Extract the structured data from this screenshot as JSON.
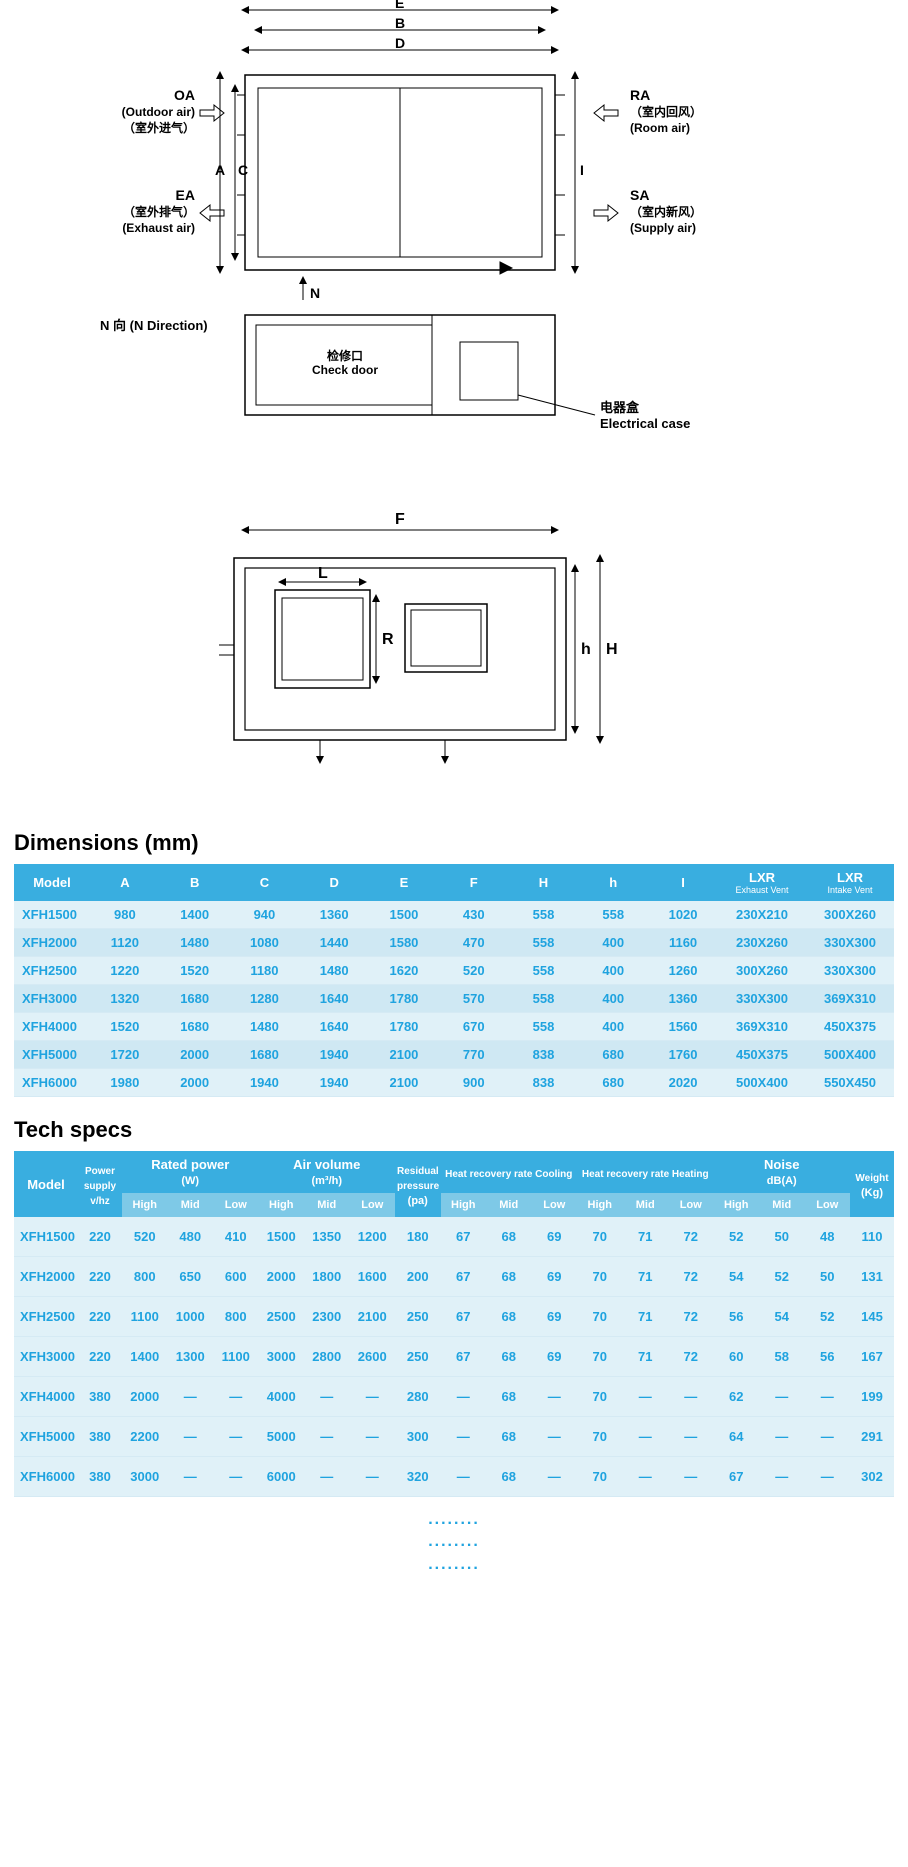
{
  "dark": "#000000",
  "white": "#ffffff",
  "blue": "#1fa3df",
  "header_bg": "#39aee0",
  "sub_bg": "#7ec9e7",
  "diag": {
    "topE": "E",
    "topB": "B",
    "topD": "D",
    "leftA": "A",
    "leftC": "C",
    "rightI": "I",
    "N": "N",
    "NDir": "N 向 (N Direction)",
    "OA_en": "OA",
    "OA_sub1": "(Outdoor air)",
    "OA_sub2": "（室外进气）",
    "EA_en": "EA",
    "EA_sub1": "（室外排气）",
    "EA_sub2": "(Exhaust air)",
    "RA_en": "RA",
    "RA_sub1": "（室内回风）",
    "RA_sub2": "(Room air)",
    "SA_en": "SA",
    "SA_sub1": "（室内新风）",
    "SA_sub2": "(Supply air)",
    "check_cn": "检修口",
    "check_en": "Check door",
    "elec_cn": "电器盒",
    "elec_en": "Electrical case",
    "F": "F",
    "L": "L",
    "R": "R",
    "h": "h",
    "H": "H"
  },
  "dims_title": "Dimensions (mm)",
  "dims_header": [
    "Model",
    "A",
    "B",
    "C",
    "D",
    "E",
    "F",
    "H",
    "h",
    "I",
    "LXR",
    "LXR"
  ],
  "dims_sub": [
    "",
    "",
    "",
    "",
    "",
    "",
    "",
    "",
    "",
    "",
    "Exhaust Vent",
    "Intake Vent"
  ],
  "dims_rows": [
    [
      "XFH1500",
      "980",
      "1400",
      "940",
      "1360",
      "1500",
      "430",
      "558",
      "558",
      "1020",
      "230X210",
      "300X260"
    ],
    [
      "XFH2000",
      "1120",
      "1480",
      "1080",
      "1440",
      "1580",
      "470",
      "558",
      "400",
      "1160",
      "230X260",
      "330X300"
    ],
    [
      "XFH2500",
      "1220",
      "1520",
      "1180",
      "1480",
      "1620",
      "520",
      "558",
      "400",
      "1260",
      "300X260",
      "330X300"
    ],
    [
      "XFH3000",
      "1320",
      "1680",
      "1280",
      "1640",
      "1780",
      "570",
      "558",
      "400",
      "1360",
      "330X300",
      "369X310"
    ],
    [
      "XFH4000",
      "1520",
      "1680",
      "1480",
      "1640",
      "1780",
      "670",
      "558",
      "400",
      "1560",
      "369X310",
      "450X375"
    ],
    [
      "XFH5000",
      "1720",
      "2000",
      "1680",
      "1940",
      "2100",
      "770",
      "838",
      "680",
      "1760",
      "450X375",
      "500X400"
    ],
    [
      "XFH6000",
      "1980",
      "2000",
      "1940",
      "1940",
      "2100",
      "900",
      "838",
      "680",
      "2020",
      "500X400",
      "550X450"
    ]
  ],
  "tech_title": "Tech specs",
  "tech_header_row1": [
    {
      "label": "Model",
      "rowspan": 2,
      "colspan": 1
    },
    {
      "label": "Power supply v/hz",
      "rowspan": 2,
      "colspan": 1,
      "small": true
    },
    {
      "label": "Rated power",
      "unit": "(W)",
      "rowspan": 1,
      "colspan": 3
    },
    {
      "label": "Air volume",
      "unit": "(m³/h)",
      "rowspan": 1,
      "colspan": 3
    },
    {
      "label": "Residual pressure",
      "unit": "(pa)",
      "rowspan": 2,
      "colspan": 1,
      "small": true
    },
    {
      "label": "Heat recovery rate Cooling",
      "rowspan": 1,
      "colspan": 3,
      "small": true
    },
    {
      "label": "Heat recovery rate Heating",
      "rowspan": 1,
      "colspan": 3,
      "small": true
    },
    {
      "label": "Noise",
      "unit": "dB(A)",
      "rowspan": 1,
      "colspan": 3
    },
    {
      "label": "Weight",
      "unit": "(Kg)",
      "rowspan": 2,
      "colspan": 1,
      "small": true
    }
  ],
  "tech_sub": [
    "High",
    "Mid",
    "Low",
    "High",
    "Mid",
    "Low",
    "High",
    "Mid",
    "Low",
    "High",
    "Mid",
    "Low",
    "High",
    "Mid",
    "Low"
  ],
  "tech_rows": [
    [
      "XFH1500",
      "220",
      "520",
      "480",
      "410",
      "1500",
      "1350",
      "1200",
      "180",
      "67",
      "68",
      "69",
      "70",
      "71",
      "72",
      "52",
      "50",
      "48",
      "110"
    ],
    [
      "XFH2000",
      "220",
      "800",
      "650",
      "600",
      "2000",
      "1800",
      "1600",
      "200",
      "67",
      "68",
      "69",
      "70",
      "71",
      "72",
      "54",
      "52",
      "50",
      "131"
    ],
    [
      "XFH2500",
      "220",
      "1100",
      "1000",
      "800",
      "2500",
      "2300",
      "2100",
      "250",
      "67",
      "68",
      "69",
      "70",
      "71",
      "72",
      "56",
      "54",
      "52",
      "145"
    ],
    [
      "XFH3000",
      "220",
      "1400",
      "1300",
      "1100",
      "3000",
      "2800",
      "2600",
      "250",
      "67",
      "68",
      "69",
      "70",
      "71",
      "72",
      "60",
      "58",
      "56",
      "167"
    ],
    [
      "XFH4000",
      "380",
      "2000",
      "—",
      "—",
      "4000",
      "—",
      "—",
      "280",
      "—",
      "68",
      "—",
      "70",
      "—",
      "—",
      "62",
      "—",
      "—",
      "199"
    ],
    [
      "XFH5000",
      "380",
      "2200",
      "—",
      "—",
      "5000",
      "—",
      "—",
      "300",
      "—",
      "68",
      "—",
      "70",
      "—",
      "—",
      "64",
      "—",
      "—",
      "291"
    ],
    [
      "XFH6000",
      "380",
      "3000",
      "—",
      "—",
      "6000",
      "—",
      "—",
      "320",
      "—",
      "68",
      "—",
      "70",
      "—",
      "—",
      "67",
      "—",
      "—",
      "302"
    ]
  ],
  "dots": "........"
}
